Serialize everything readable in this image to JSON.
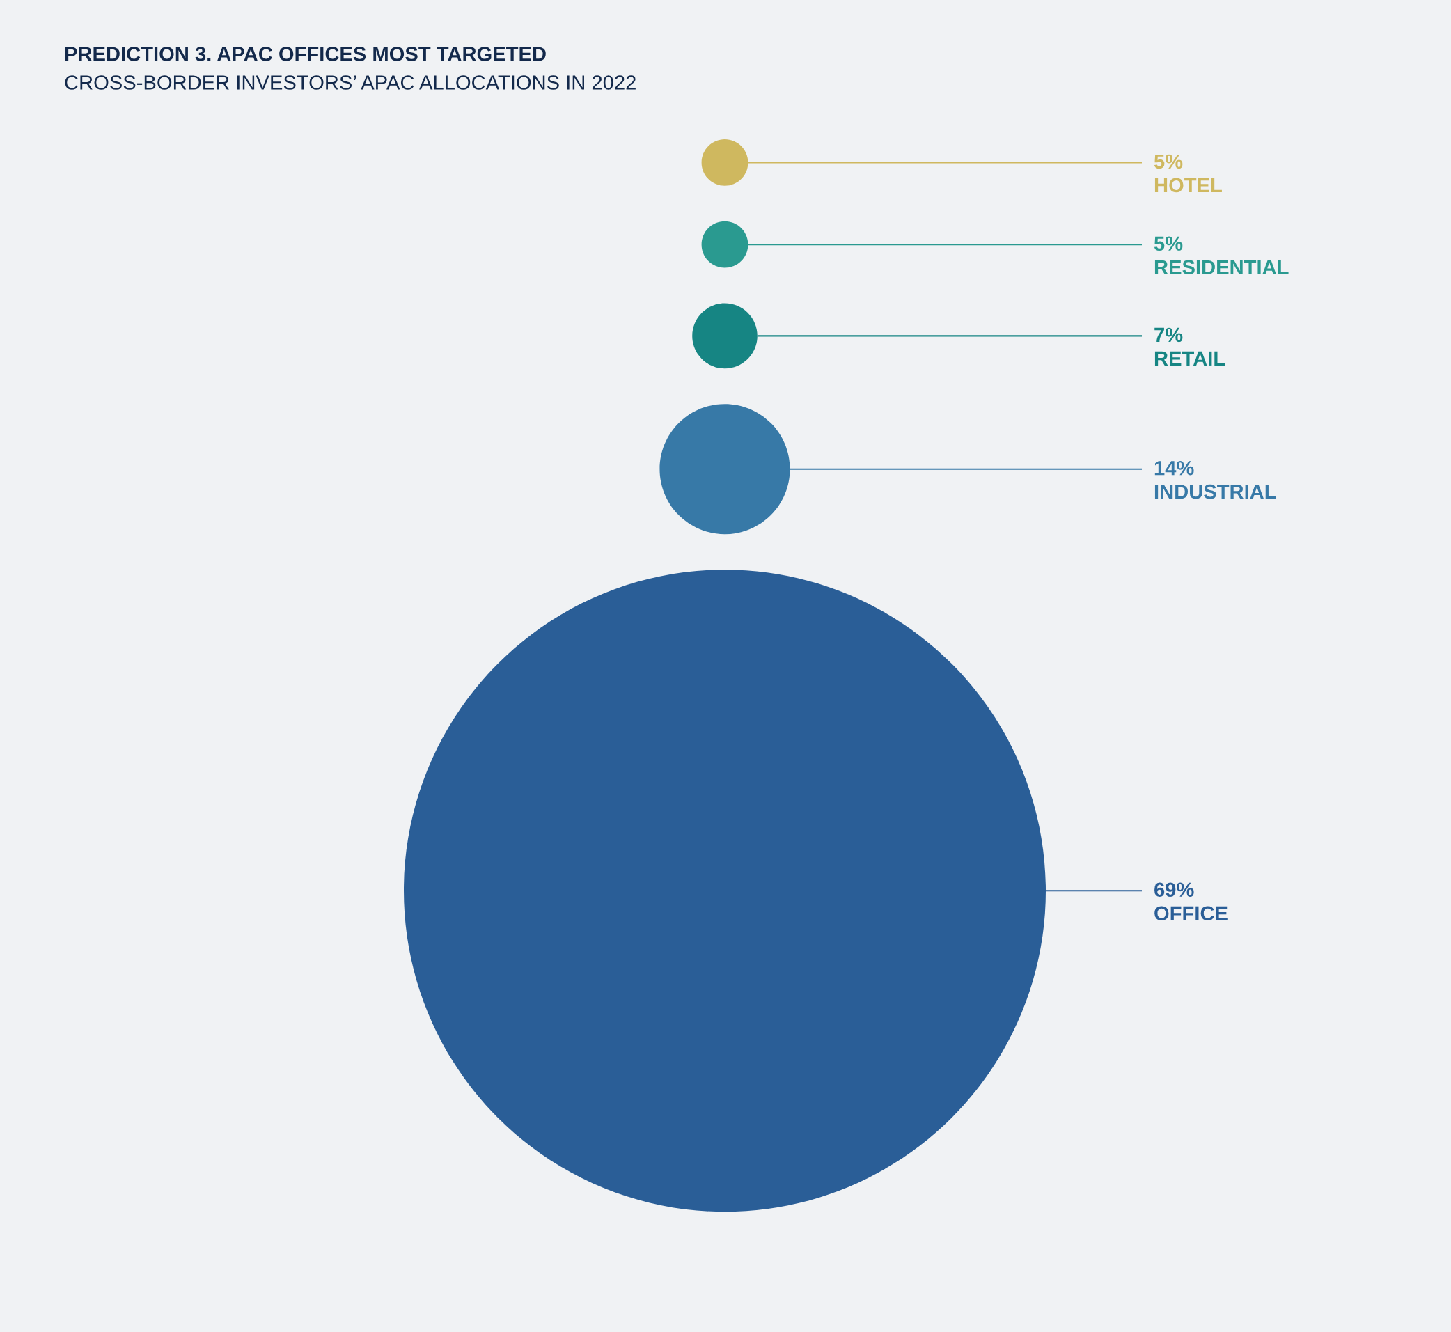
{
  "chart_data": {
    "type": "other",
    "title": "PREDICTION 3. APAC OFFICES MOST TARGETED",
    "subtitle": "CROSS-BORDER INVESTORS’ APAC ALLOCATIONS IN 2022",
    "categories": [
      "HOTEL",
      "RESIDENTIAL",
      "RETAIL",
      "INDUSTRIAL",
      "OFFICE"
    ],
    "values": [
      5,
      5,
      7,
      14,
      69
    ],
    "value_labels": [
      "5%",
      "5%",
      "7%",
      "14%",
      "69%"
    ],
    "colors": [
      "#cfb85f",
      "#2a9a90",
      "#168583",
      "#3779a7",
      "#2a5e97"
    ]
  }
}
